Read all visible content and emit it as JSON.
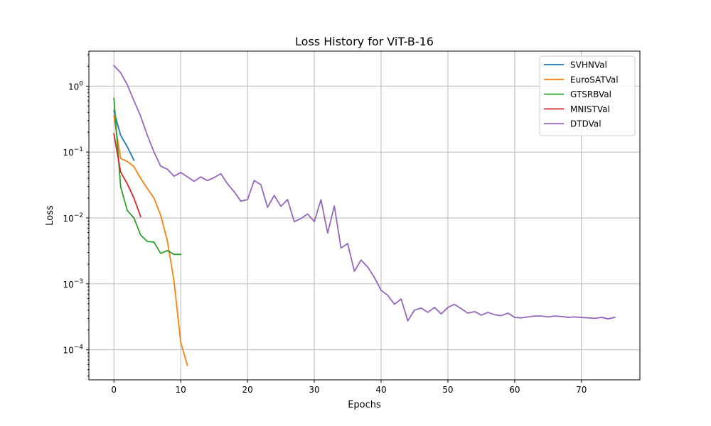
{
  "chart_data": {
    "type": "line",
    "title": "Loss History for ViT-B-16",
    "xlabel": "Epochs",
    "ylabel": "Loss",
    "xlim": [
      -3.75,
      78.75
    ],
    "ylim": [
      3.5e-05,
      3.4
    ],
    "yscale": "log",
    "grid": true,
    "legend_position": "top-right",
    "x_ticks": [
      0,
      10,
      20,
      30,
      40,
      50,
      60,
      70
    ],
    "y_ticks": [
      {
        "value": 0.0001,
        "base": "10",
        "exp": "−4"
      },
      {
        "value": 0.001,
        "base": "10",
        "exp": "−3"
      },
      {
        "value": 0.01,
        "base": "10",
        "exp": "−2"
      },
      {
        "value": 0.1,
        "base": "10",
        "exp": "−1"
      },
      {
        "value": 1,
        "base": "10",
        "exp": "0"
      }
    ],
    "series": [
      {
        "name": "SVHNVal",
        "color": "#1f77b4",
        "x": [
          0,
          1,
          2,
          3
        ],
        "y": [
          0.42,
          0.18,
          0.12,
          0.075
        ]
      },
      {
        "name": "EuroSATVal",
        "color": "#ff7f0e",
        "x": [
          0,
          1,
          2,
          3,
          4,
          5,
          6,
          7,
          8,
          9,
          10,
          11
        ],
        "y": [
          0.35,
          0.08,
          0.072,
          0.06,
          0.04,
          0.028,
          0.02,
          0.011,
          0.0045,
          0.0011,
          0.00013,
          5.8e-05
        ]
      },
      {
        "name": "GTSRBVal",
        "color": "#2ca02c",
        "x": [
          0,
          1,
          2,
          3,
          4,
          5,
          6,
          7,
          8,
          9,
          10
        ],
        "y": [
          0.65,
          0.03,
          0.013,
          0.01,
          0.0055,
          0.0044,
          0.0043,
          0.0029,
          0.0032,
          0.0028,
          0.0028
        ]
      },
      {
        "name": "MNISTVal",
        "color": "#d62728",
        "x": [
          0,
          1,
          2,
          3,
          4
        ],
        "y": [
          0.19,
          0.05,
          0.033,
          0.02,
          0.0105
        ]
      },
      {
        "name": "DTDVal",
        "color": "#9467bd",
        "x": [
          0,
          1,
          2,
          3,
          4,
          5,
          6,
          7,
          8,
          9,
          10,
          11,
          12,
          13,
          14,
          15,
          16,
          17,
          18,
          19,
          20,
          21,
          22,
          23,
          24,
          25,
          26,
          27,
          28,
          29,
          30,
          31,
          32,
          33,
          34,
          35,
          36,
          37,
          38,
          39,
          40,
          41,
          42,
          43,
          44,
          45,
          46,
          47,
          48,
          49,
          50,
          51,
          52,
          53,
          54,
          55,
          56,
          57,
          58,
          59,
          60,
          61,
          62,
          63,
          64,
          65,
          66,
          67,
          68,
          69,
          70,
          71,
          72,
          73,
          74,
          75
        ],
        "y": [
          2.05,
          1.6,
          1.05,
          0.6,
          0.35,
          0.18,
          0.1,
          0.061,
          0.055,
          0.043,
          0.049,
          0.042,
          0.036,
          0.042,
          0.037,
          0.041,
          0.047,
          0.033,
          0.025,
          0.018,
          0.019,
          0.037,
          0.032,
          0.0145,
          0.022,
          0.015,
          0.019,
          0.0088,
          0.0098,
          0.0115,
          0.0088,
          0.019,
          0.0059,
          0.0152,
          0.0035,
          0.0041,
          0.00155,
          0.0023,
          0.0018,
          0.00125,
          0.0008,
          0.00067,
          0.00049,
          0.00059,
          0.000275,
          0.0004,
          0.00043,
          0.00037,
          0.00044,
          0.00035,
          0.00044,
          0.00049,
          0.00042,
          0.00036,
          0.00038,
          0.000335,
          0.00037,
          0.00034,
          0.00033,
          0.00036,
          0.00031,
          0.000305,
          0.000315,
          0.000325,
          0.000325,
          0.000315,
          0.000325,
          0.00032,
          0.00031,
          0.000315,
          0.00031,
          0.000305,
          0.0003,
          0.00031,
          0.000295,
          0.00031
        ]
      }
    ]
  }
}
